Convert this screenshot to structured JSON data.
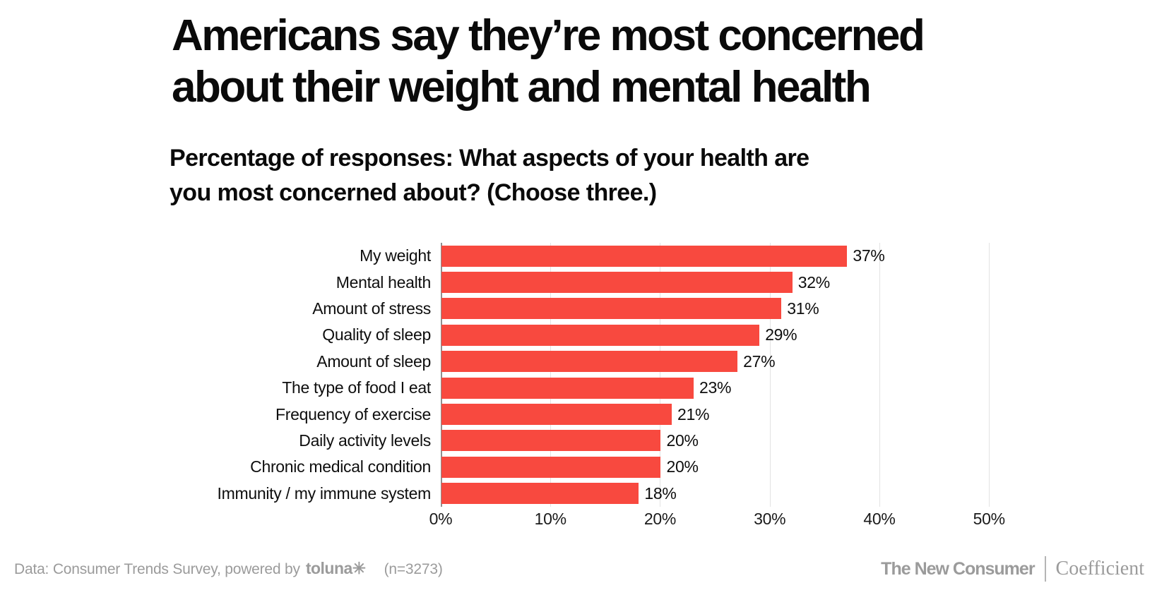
{
  "page": {
    "title_line1": "Americans say they’re most concerned",
    "title_line2": "about their weight and mental health",
    "subtitle_line1": "Percentage of responses: What aspects of your health are",
    "subtitle_line2": "you most concerned about? (Choose three.)"
  },
  "chart_data": {
    "type": "bar",
    "orientation": "horizontal",
    "title": "Americans say they’re most concerned about their weight and mental health",
    "subtitle": "Percentage of responses: What aspects of your health are you most concerned about? (Choose three.)",
    "categories": [
      "My weight",
      "Mental health",
      "Amount of stress",
      "Quality of sleep",
      "Amount of sleep",
      "The type of food I eat",
      "Frequency of exercise",
      "Daily activity levels",
      "Chronic medical condition",
      "Immunity / my immune system"
    ],
    "values": [
      37,
      32,
      31,
      29,
      27,
      23,
      21,
      20,
      20,
      18
    ],
    "value_labels": [
      "37%",
      "32%",
      "31%",
      "29%",
      "27%",
      "23%",
      "21%",
      "20%",
      "20%",
      "18%"
    ],
    "x_tick_values": [
      0,
      10,
      20,
      30,
      40,
      50
    ],
    "x_tick_labels": [
      "0%",
      "10%",
      "20%",
      "30%",
      "40%",
      "50%"
    ],
    "xlim": [
      0,
      52.5
    ],
    "grid": true,
    "legend": "none",
    "bar_color": "#f8493f",
    "gridline_color": "#e3e3e3",
    "axis_line_color": "#8f8f8f"
  },
  "footer": {
    "source_prefix": "Data: Consumer Trends Survey, powered by",
    "source_logo": "toluna✳",
    "sample_size": "(n=3273)",
    "brand_left": "The New Consumer",
    "brand_right": "Coefficient",
    "text_color": "#9b9b9b"
  }
}
